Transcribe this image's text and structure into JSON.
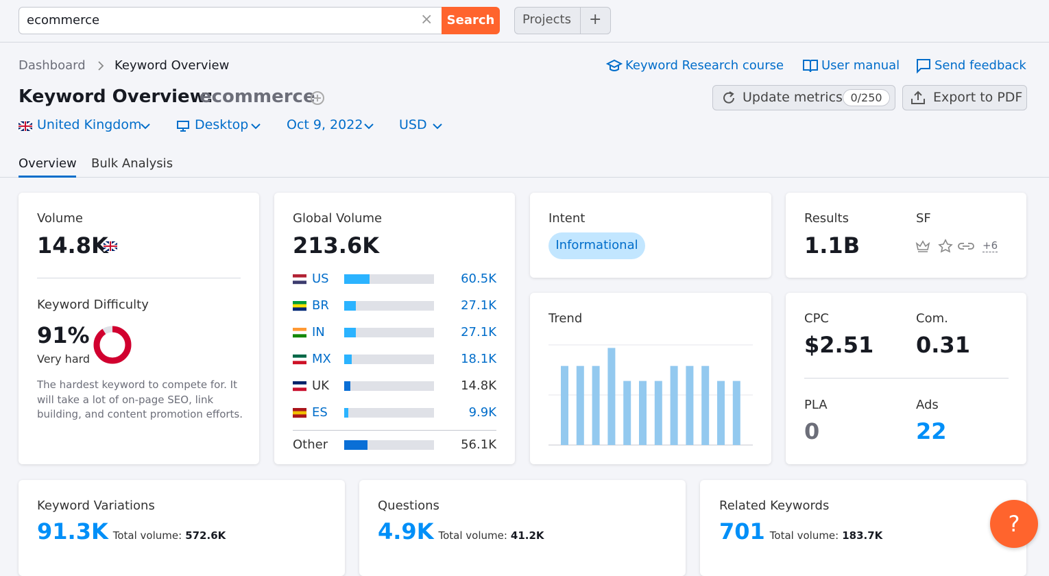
{
  "search": {
    "query": "ecommerce",
    "button": "Search",
    "projects": "Projects"
  },
  "breadcrumb": [
    "Dashboard",
    "Keyword Overview"
  ],
  "links": [
    "Keyword Research course",
    "User manual",
    "Send feedback"
  ],
  "title": {
    "label": "Keyword Overview:",
    "keyword": "ecommerce"
  },
  "actions": {
    "update": "Update metrics",
    "quota": "0/250",
    "export": "Export to PDF"
  },
  "filters": [
    "United Kingdom",
    "Desktop",
    "Oct 9, 2022",
    "USD"
  ],
  "tabs": [
    "Overview",
    "Bulk Analysis"
  ],
  "volume": {
    "label": "Volume",
    "value": "14.8K"
  },
  "difficulty": {
    "label": "Keyword Difficulty",
    "value": 91,
    "value_label": "91%",
    "level": "Very hard",
    "description": "The hardest keyword to compete for. It will take a lot of on-page SEO, link building, and content promotion efforts."
  },
  "global_volume": {
    "label": "Global Volume",
    "value": 213600,
    "value_label": "213.6K",
    "countries": [
      {
        "code": "US",
        "value": 60500,
        "value_label": "60.5K"
      },
      {
        "code": "BR",
        "value": 27100,
        "value_label": "27.1K"
      },
      {
        "code": "IN",
        "value": 27100,
        "value_label": "27.1K"
      },
      {
        "code": "MX",
        "value": 18100,
        "value_label": "18.1K"
      },
      {
        "code": "UK",
        "value": 14800,
        "value_label": "14.8K",
        "highlight": true
      },
      {
        "code": "ES",
        "value": 9900,
        "value_label": "9.9K"
      }
    ],
    "other": {
      "label": "Other",
      "value": 56100,
      "value_label": "56.1K"
    }
  },
  "intent": {
    "label": "Intent",
    "value": "Informational"
  },
  "results": {
    "label": "Results",
    "value": "1.1B"
  },
  "sf": {
    "label": "SF",
    "more": "+6"
  },
  "trend": {
    "label": "Trend",
    "ylim": [
      0,
      100
    ],
    "values": [
      79,
      79,
      79,
      97,
      64,
      64,
      64,
      79,
      79,
      79,
      64,
      64
    ]
  },
  "cpc": {
    "label": "CPC",
    "value": "$2.51"
  },
  "competition": {
    "label": "Com.",
    "value": "0.31"
  },
  "pla": {
    "label": "PLA",
    "value": "0"
  },
  "ads": {
    "label": "Ads",
    "value": "22"
  },
  "cards": [
    {
      "label": "Keyword Variations",
      "value": "91.3K",
      "total_label": "Total volume:",
      "total": "572.6K"
    },
    {
      "label": "Questions",
      "value": "4.9K",
      "total_label": "Total volume:",
      "total": "41.2K"
    },
    {
      "label": "Related Keywords",
      "value": "701",
      "total_label": "Total volume:",
      "total": "183.7K"
    }
  ],
  "help": "?"
}
